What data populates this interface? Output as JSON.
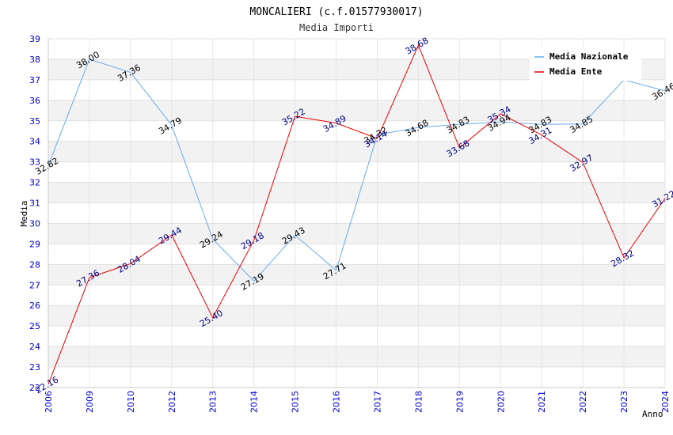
{
  "chart_data": {
    "type": "line",
    "title": "MONCALIERI (c.f.01577930017)",
    "subtitle": "Media Importi",
    "xlabel": "Anno",
    "ylabel": "Media",
    "ylim": [
      22,
      39
    ],
    "yticks": [
      "22",
      "23",
      "24",
      "25",
      "26",
      "27",
      "28",
      "29",
      "30",
      "31",
      "32",
      "33",
      "34",
      "35",
      "36",
      "37",
      "38",
      "39"
    ],
    "categories": [
      "2006",
      "2009",
      "2010",
      "2012",
      "2013",
      "2014",
      "2015",
      "2016",
      "2017",
      "2018",
      "2019",
      "2020",
      "2021",
      "2022",
      "2023",
      "2024"
    ],
    "series": [
      {
        "name": "Media Nazionale",
        "color": "#66aaee",
        "label_color": "#000000",
        "values": [
          32.82,
          38.0,
          37.36,
          34.79,
          29.24,
          27.19,
          29.43,
          27.71,
          34.32,
          34.68,
          34.83,
          34.94,
          34.83,
          34.85,
          37.0,
          36.46
        ],
        "labels": [
          "32.82",
          "38.00",
          "37.36",
          "34.79",
          "29.24",
          "27.19",
          "29.43",
          "27.71",
          "34.32",
          "34.68",
          "34.83",
          "34.94",
          "34.83",
          "34.85",
          "",
          "36.46"
        ]
      },
      {
        "name": "Media Ente",
        "color": "#ee0000",
        "label_color": "#000088",
        "values": [
          22.16,
          27.36,
          28.04,
          29.44,
          25.4,
          29.18,
          35.22,
          34.89,
          34.14,
          38.68,
          33.68,
          35.34,
          34.31,
          32.97,
          28.32,
          31.22
        ],
        "labels": [
          "22.16",
          "27.36",
          "28.04",
          "29.44",
          "25.40",
          "29.18",
          "35.22",
          "34.89",
          "34.14",
          "38.68",
          "33.68",
          "35.34",
          "34.31",
          "32.97",
          "28.32",
          "31.22"
        ]
      }
    ],
    "legend_position": "top-right"
  }
}
